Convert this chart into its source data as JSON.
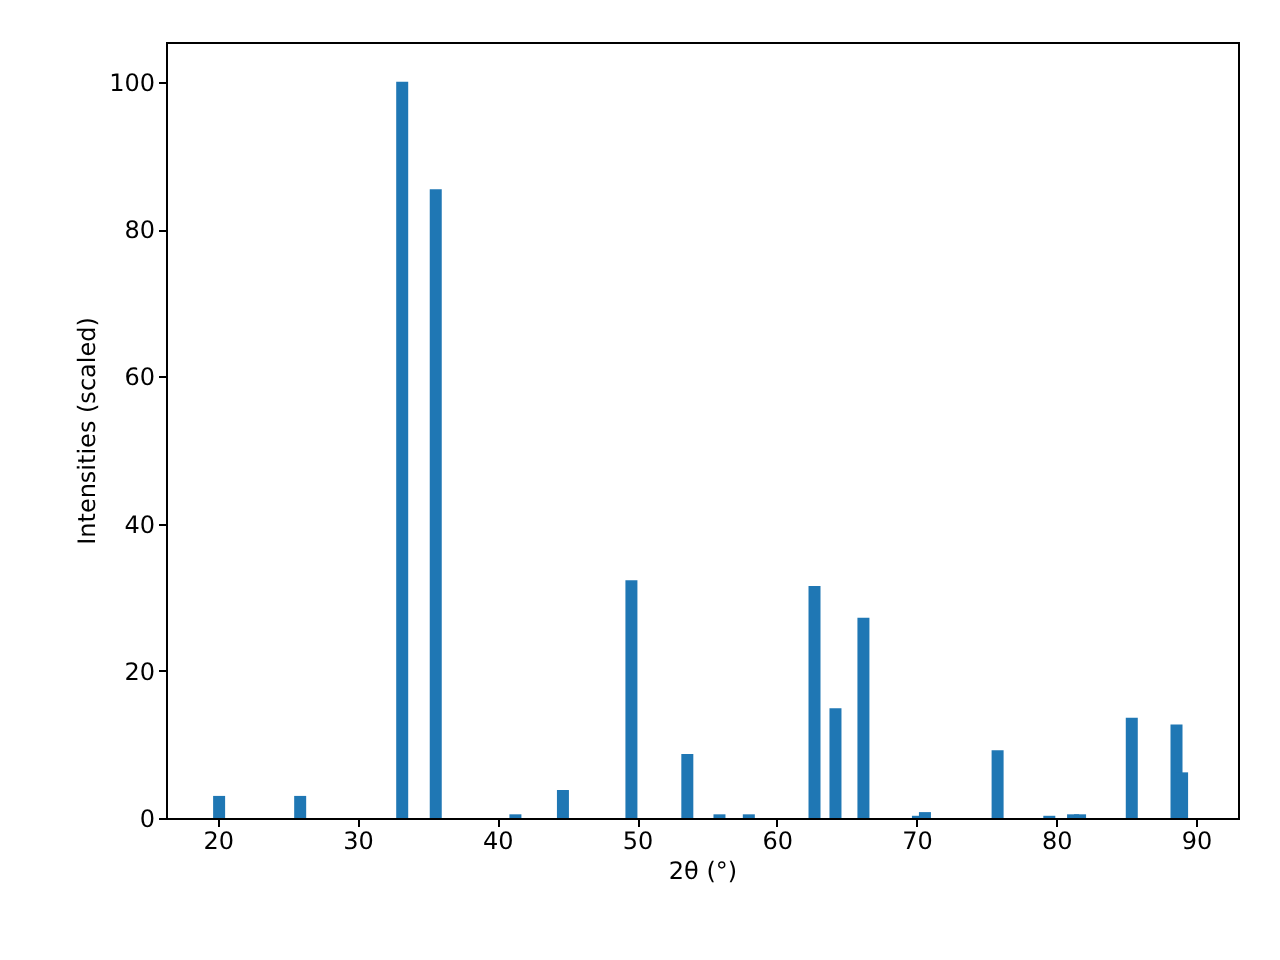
{
  "chart_data": {
    "type": "bar",
    "xlabel": "2θ (°)",
    "ylabel": "Intensities (scaled)",
    "x": [
      20.1,
      25.9,
      33.2,
      35.6,
      41.3,
      44.7,
      49.6,
      53.6,
      55.9,
      58.0,
      62.7,
      64.2,
      66.2,
      70.1,
      70.6,
      75.8,
      79.5,
      81.2,
      81.7,
      85.4,
      88.6,
      89.0
    ],
    "series": [
      {
        "color": "#1f77b4",
        "values": [
          3.0,
          3.0,
          100,
          85.4,
          0.5,
          3.8,
          32.3,
          8.7,
          0.5,
          0.5,
          31.5,
          14.9,
          27.2,
          0.3,
          0.8,
          9.2,
          0.3,
          0.5,
          0.5,
          13.6,
          12.7,
          6.2
        ]
      }
    ],
    "xlim": [
      16.3,
      93.0
    ],
    "ylim": [
      0,
      105.4
    ],
    "xticks": [
      20,
      30,
      40,
      50,
      60,
      70,
      80,
      90
    ],
    "yticks": [
      0,
      20,
      40,
      60,
      80,
      100
    ],
    "grid": false
  }
}
